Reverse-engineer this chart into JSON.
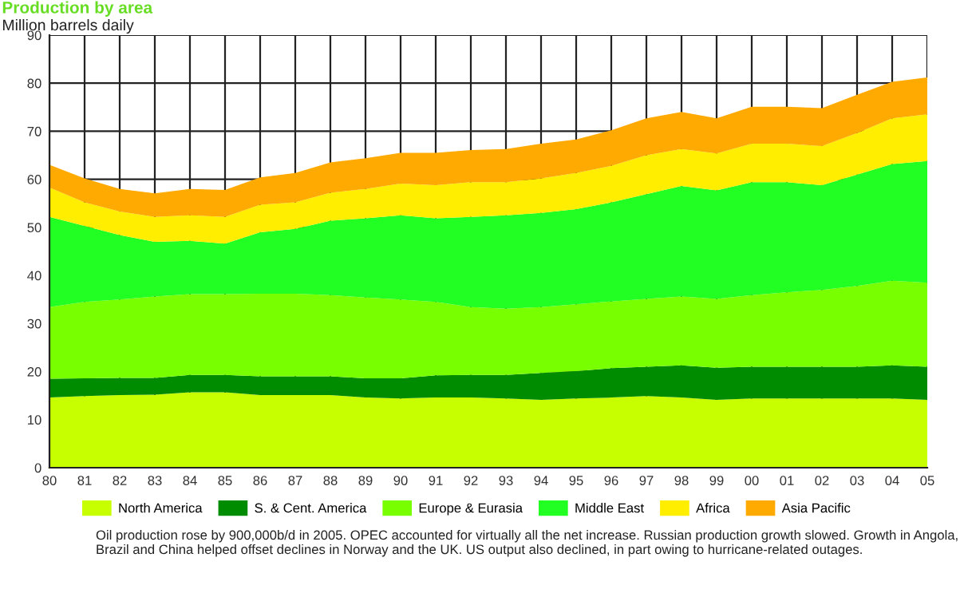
{
  "chart_data": {
    "type": "area",
    "stacked": true,
    "title": "Production by area",
    "subtitle": "Million barrels daily",
    "x": [
      1980,
      1981,
      1982,
      1983,
      1984,
      1985,
      1986,
      1987,
      1988,
      1989,
      1990,
      1991,
      1992,
      1993,
      1994,
      1995,
      1996,
      1997,
      1998,
      1999,
      2000,
      2001,
      2002,
      2003,
      2004,
      2005
    ],
    "series": [
      {
        "name": "North America",
        "color": "#c8ff00",
        "values": [
          14.6,
          14.9,
          15.1,
          15.2,
          15.7,
          15.7,
          15.1,
          15.1,
          15.1,
          14.6,
          14.4,
          14.6,
          14.6,
          14.4,
          14.1,
          14.4,
          14.6,
          14.9,
          14.6,
          14.1,
          14.4,
          14.4,
          14.4,
          14.4,
          14.4,
          14.1
        ]
      },
      {
        "name": "S. & Cent. America",
        "color": "#008c00",
        "values": [
          3.9,
          3.7,
          3.6,
          3.5,
          3.6,
          3.6,
          3.9,
          3.9,
          3.9,
          4.0,
          4.2,
          4.6,
          4.7,
          4.9,
          5.6,
          5.7,
          6.1,
          6.1,
          6.7,
          6.7,
          6.6,
          6.6,
          6.6,
          6.6,
          6.9,
          6.9
        ]
      },
      {
        "name": "Europe & Eurasia",
        "color": "#78ff00",
        "values": [
          14.9,
          15.9,
          16.3,
          16.9,
          16.8,
          16.8,
          17.2,
          17.2,
          16.9,
          16.8,
          16.4,
          15.3,
          14.1,
          13.8,
          13.7,
          13.9,
          13.9,
          14.1,
          14.3,
          14.3,
          14.9,
          15.5,
          16.0,
          16.8,
          17.6,
          17.5
        ]
      },
      {
        "name": "Middle East",
        "color": "#22ff22",
        "values": [
          18.8,
          15.8,
          13.4,
          11.4,
          11.1,
          10.5,
          12.8,
          13.5,
          15.5,
          16.5,
          17.5,
          17.4,
          18.8,
          19.4,
          19.6,
          19.8,
          20.6,
          21.8,
          23.0,
          22.6,
          23.5,
          22.9,
          21.8,
          23.2,
          24.3,
          25.3
        ]
      },
      {
        "name": "Africa",
        "color": "#ffee00",
        "values": [
          6.1,
          4.9,
          4.9,
          5.2,
          5.3,
          5.6,
          5.7,
          5.5,
          5.8,
          6.1,
          6.6,
          6.9,
          7.2,
          6.9,
          7.2,
          7.5,
          7.6,
          8.1,
          7.7,
          7.7,
          8.0,
          8.0,
          8.1,
          8.6,
          9.5,
          9.7
        ]
      },
      {
        "name": "Asia Pacific",
        "color": "#ffaa00",
        "values": [
          4.7,
          5.0,
          4.7,
          4.9,
          5.5,
          5.6,
          5.7,
          6.1,
          6.3,
          6.4,
          6.4,
          6.7,
          6.7,
          6.9,
          7.2,
          7.0,
          7.4,
          7.7,
          7.7,
          7.3,
          7.7,
          7.7,
          7.9,
          8.0,
          7.6,
          7.7
        ]
      }
    ],
    "xlim": [
      1980,
      2005
    ],
    "xticks": [
      {
        "value": 1980,
        "label": "80"
      },
      {
        "value": 1981,
        "label": "81"
      },
      {
        "value": 1982,
        "label": "82"
      },
      {
        "value": 1983,
        "label": "83"
      },
      {
        "value": 1984,
        "label": "84"
      },
      {
        "value": 1985,
        "label": "85"
      },
      {
        "value": 1986,
        "label": "86"
      },
      {
        "value": 1987,
        "label": "87"
      },
      {
        "value": 1988,
        "label": "88"
      },
      {
        "value": 1989,
        "label": "89"
      },
      {
        "value": 1990,
        "label": "90"
      },
      {
        "value": 1991,
        "label": "91"
      },
      {
        "value": 1992,
        "label": "92"
      },
      {
        "value": 1993,
        "label": "93"
      },
      {
        "value": 1994,
        "label": "94"
      },
      {
        "value": 1995,
        "label": "95"
      },
      {
        "value": 1996,
        "label": "96"
      },
      {
        "value": 1997,
        "label": "97"
      },
      {
        "value": 1998,
        "label": "98"
      },
      {
        "value": 1999,
        "label": "99"
      },
      {
        "value": 2000,
        "label": "00"
      },
      {
        "value": 2001,
        "label": "01"
      },
      {
        "value": 2002,
        "label": "02"
      },
      {
        "value": 2003,
        "label": "03"
      },
      {
        "value": 2004,
        "label": "04"
      },
      {
        "value": 2005,
        "label": "05"
      }
    ],
    "ylim": [
      0,
      90
    ],
    "yticks": [
      0,
      10,
      20,
      30,
      40,
      50,
      60,
      70,
      80,
      90
    ],
    "grid": true,
    "legend": "bottom",
    "annotations": [
      "Oil production rose by 900,000b/d in 2005. OPEC accounted for virtually all the net increase. Russian production growth slowed. Growth in Angola, Brazil and China helped offset declines in Norway and the UK. US output also declined, in part owing to hurricane-related outages."
    ]
  }
}
